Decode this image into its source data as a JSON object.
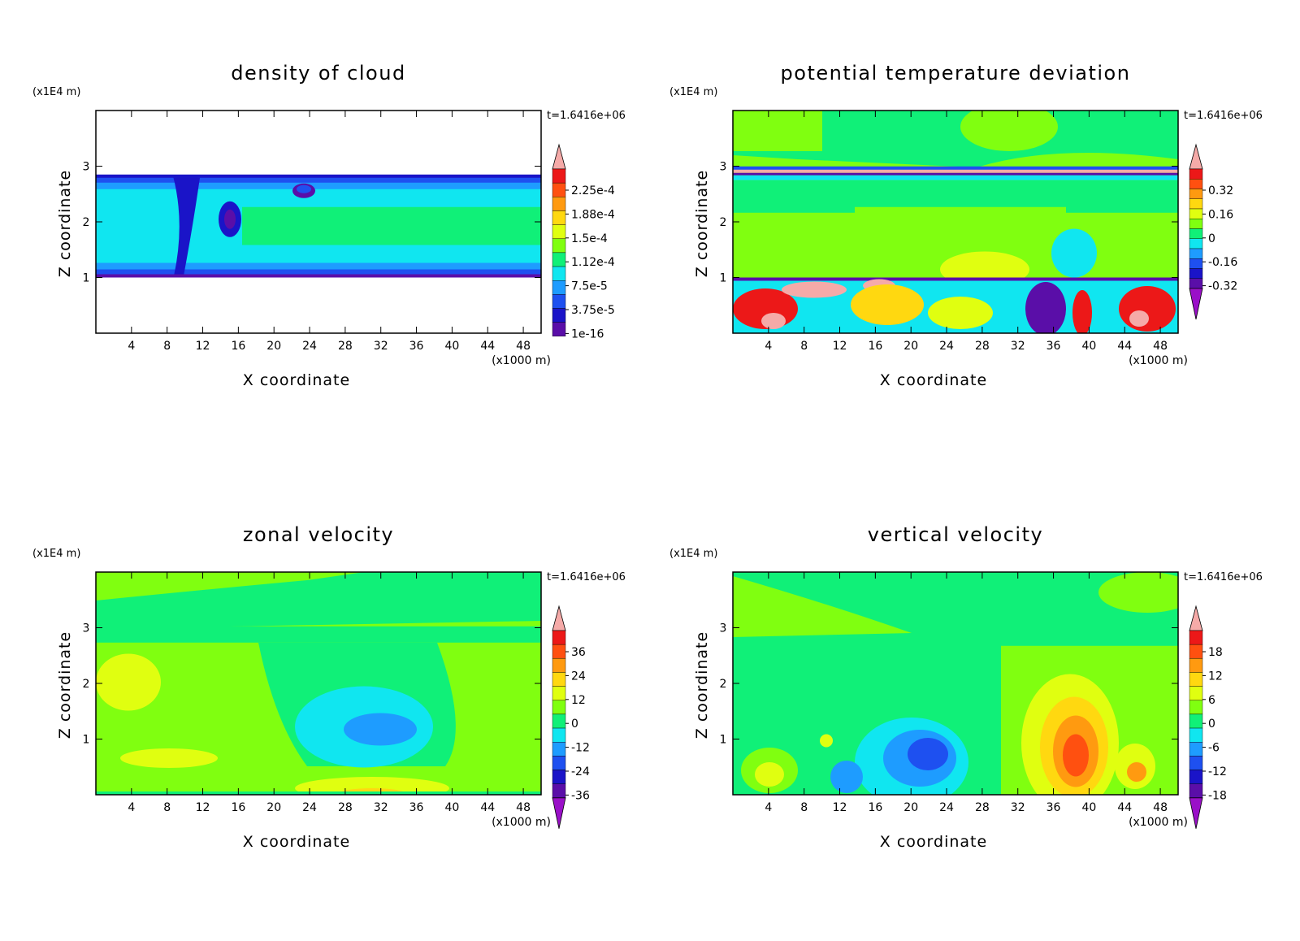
{
  "panels": [
    {
      "title": "density of cloud",
      "unit_z": "(x1E4 m)",
      "unit_x": "(x1000 m)",
      "time_label": "t=1.6416e+06",
      "xlabel": "X coordinate",
      "ylabel": "Z coordinate",
      "colorbar_labels": [
        "2.25e-4",
        "1.88e-4",
        "1.5e-4",
        "1.12e-4",
        "7.5e-5",
        "3.75e-5",
        "1e-16"
      ],
      "colorbar_has_lower_triangle": false
    },
    {
      "title": "potential temperature deviation",
      "unit_z": "(x1E4 m)",
      "unit_x": "(x1000 m)",
      "time_label": "t=1.6416e+06",
      "xlabel": "X coordinate",
      "ylabel": "Z coordinate",
      "colorbar_labels": [
        "0.32",
        "0.16",
        "0",
        "-0.16",
        "-0.32"
      ],
      "colorbar_has_lower_triangle": true
    },
    {
      "title": "zonal velocity",
      "unit_z": "(x1E4 m)",
      "unit_x": "(x1000 m)",
      "time_label": "t=1.6416e+06",
      "xlabel": "X coordinate",
      "ylabel": "Z coordinate",
      "colorbar_labels": [
        "36",
        "24",
        "12",
        "0",
        "-12",
        "-24",
        "-36"
      ],
      "colorbar_has_lower_triangle": true
    },
    {
      "title": "vertical velocity",
      "unit_z": "(x1E4 m)",
      "unit_x": "(x1000 m)",
      "time_label": "t=1.6416e+06",
      "xlabel": "X coordinate",
      "ylabel": "Z coordinate",
      "colorbar_labels": [
        "18",
        "12",
        "6",
        "0",
        "-6",
        "-12",
        "-18"
      ],
      "colorbar_has_lower_triangle": true
    }
  ],
  "chart_data": [
    {
      "type": "heatmap",
      "title": "density of cloud",
      "xlabel": "X coordinate",
      "ylabel": "Z coordinate",
      "x_ticks": [
        4,
        8,
        12,
        16,
        20,
        24,
        28,
        32,
        36,
        40,
        44,
        48
      ],
      "z_ticks": [
        1,
        2,
        3
      ],
      "xlim": [
        0,
        50
      ],
      "zlim": [
        0,
        4
      ],
      "colorbar_levels": [
        "2.25e-4",
        "1.88e-4",
        "1.5e-4",
        "1.12e-4",
        "7.5e-5",
        "3.75e-5",
        "1e-16"
      ],
      "cloud_layer_z": [
        1.0,
        2.85
      ]
    },
    {
      "type": "heatmap",
      "title": "potential temperature deviation",
      "xlabel": "X coordinate",
      "ylabel": "Z coordinate",
      "x_ticks": [
        4,
        8,
        12,
        16,
        20,
        24,
        28,
        32,
        36,
        40,
        44,
        48
      ],
      "z_ticks": [
        1,
        2,
        3
      ],
      "xlim": [
        0,
        50
      ],
      "zlim": [
        0,
        4
      ],
      "colorbar_levels": [
        "0.32",
        "0.16",
        "0",
        "-0.16",
        "-0.32"
      ]
    },
    {
      "type": "heatmap",
      "title": "zonal velocity",
      "xlabel": "X coordinate",
      "ylabel": "Z coordinate",
      "x_ticks": [
        4,
        8,
        12,
        16,
        20,
        24,
        28,
        32,
        36,
        40,
        44,
        48
      ],
      "z_ticks": [
        1,
        2,
        3
      ],
      "xlim": [
        0,
        50
      ],
      "zlim": [
        0,
        4
      ],
      "colorbar_levels": [
        "36",
        "24",
        "12",
        "0",
        "-12",
        "-24",
        "-36"
      ]
    },
    {
      "type": "heatmap",
      "title": "vertical velocity",
      "xlabel": "X coordinate",
      "ylabel": "Z coordinate",
      "x_ticks": [
        4,
        8,
        12,
        16,
        20,
        24,
        28,
        32,
        36,
        40,
        44,
        48
      ],
      "z_ticks": [
        1,
        2,
        3
      ],
      "xlim": [
        0,
        50
      ],
      "zlim": [
        0,
        4
      ],
      "colorbar_levels": [
        "18",
        "12",
        "6",
        "0",
        "-6",
        "-12",
        "-18"
      ]
    }
  ],
  "colors": {
    "palette": [
      "#5a0ea8",
      "#1a14c8",
      "#1e50f0",
      "#1e9cff",
      "#10e6f0",
      "#10f078",
      "#80ff10",
      "#e0ff10",
      "#ffd810",
      "#ff9a10",
      "#ff5010",
      "#ec1818",
      "#f5aaa8"
    ]
  }
}
